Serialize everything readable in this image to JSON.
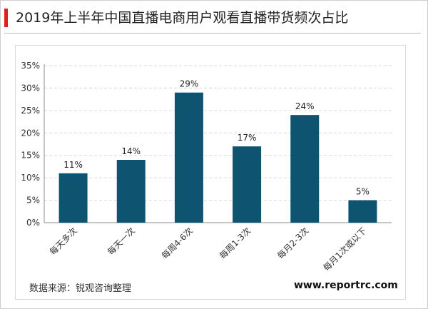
{
  "title": "2019年上半年中国直播电商用户观看直播带货频次占比",
  "source": "数据来源：锐观咨询整理",
  "website": "www.reportrc.com",
  "colors": {
    "bar": "#0e5470",
    "title_accent": "#e02020",
    "grid": "#d9d9d9",
    "axis": "#8c8c8c"
  },
  "chart_data": {
    "type": "bar",
    "categories": [
      "每天多次",
      "每天一次",
      "每周4-6次",
      "每周1-3次",
      "每月2-3次",
      "每月1次或以下"
    ],
    "values": [
      11,
      14,
      29,
      17,
      24,
      5
    ],
    "data_labels": [
      "11%",
      "14%",
      "29%",
      "17%",
      "24%",
      "5%"
    ],
    "yticks": [
      "0%",
      "5%",
      "10%",
      "15%",
      "20%",
      "25%",
      "30%",
      "35%"
    ],
    "ylim": [
      0,
      35
    ],
    "grid": true,
    "legend": "none",
    "xlabel": "",
    "ylabel": ""
  }
}
